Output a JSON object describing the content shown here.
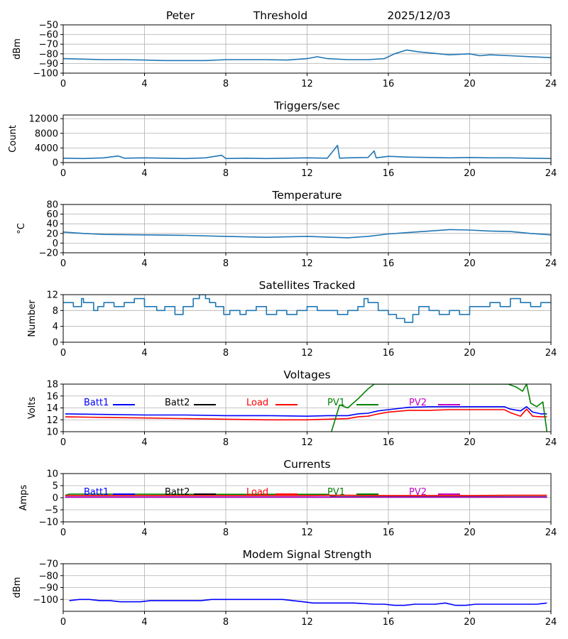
{
  "header": {
    "station": "Peter",
    "mode": "Threshold",
    "date": "2025/12/03"
  },
  "chart_data": [
    {
      "id": "threshold",
      "type": "line",
      "title": "",
      "xlabel": "",
      "ylabel": "dBm",
      "xlim": [
        0,
        24
      ],
      "ylim": [
        -100,
        -50
      ],
      "xticks": [
        0,
        4,
        8,
        12,
        16,
        20,
        24
      ],
      "yticks": [
        -100,
        -90,
        -80,
        -70,
        -60,
        -50
      ],
      "ytick_labels": [
        "−100",
        "−90",
        "−80",
        "−70",
        "−60",
        "−50"
      ],
      "grid": true,
      "series": [
        {
          "color": "#1f77b4",
          "x": [
            0,
            1,
            2,
            3,
            4,
            5,
            6,
            7,
            8,
            9,
            10,
            11,
            12,
            12.5,
            13,
            14,
            15,
            15.8,
            16.3,
            16.9,
            17.5,
            18,
            19,
            20,
            20.5,
            21,
            22,
            23,
            24
          ],
          "y": [
            -85,
            -85.5,
            -86,
            -86,
            -86.5,
            -87,
            -87,
            -87,
            -86,
            -86,
            -86,
            -86.5,
            -85,
            -83,
            -85,
            -86,
            -86,
            -85,
            -80,
            -76,
            -78,
            -79,
            -81,
            -80,
            -82,
            -81,
            -82,
            -83,
            -84
          ]
        }
      ]
    },
    {
      "id": "triggers",
      "type": "line",
      "title": "Triggers/sec",
      "xlabel": "",
      "ylabel": "Count",
      "xlim": [
        0,
        24
      ],
      "ylim": [
        0,
        13000
      ],
      "xticks": [
        0,
        4,
        8,
        12,
        16,
        20,
        24
      ],
      "yticks": [
        0,
        4000,
        8000,
        12000
      ],
      "ytick_labels": [
        "0",
        "4000",
        "8000",
        "12000"
      ],
      "grid": true,
      "series": [
        {
          "color": "#1f77b4",
          "x": [
            0,
            1,
            2,
            2.7,
            3,
            4,
            5,
            6,
            7,
            7.8,
            8,
            9,
            10,
            11,
            12,
            13,
            13.5,
            13.6,
            14,
            15,
            15.3,
            15.4,
            16,
            17,
            18,
            19,
            20,
            21,
            22,
            23,
            24
          ],
          "y": [
            1200,
            1100,
            1300,
            1800,
            1200,
            1300,
            1200,
            1100,
            1300,
            2000,
            1100,
            1200,
            1100,
            1200,
            1300,
            1200,
            4700,
            1200,
            1300,
            1400,
            3200,
            1300,
            1700,
            1500,
            1400,
            1300,
            1400,
            1300,
            1300,
            1200,
            1100
          ]
        }
      ]
    },
    {
      "id": "temperature",
      "type": "line",
      "title": "Temperature",
      "xlabel": "",
      "ylabel": "°C",
      "xlim": [
        0,
        24
      ],
      "ylim": [
        -20,
        80
      ],
      "xticks": [
        0,
        4,
        8,
        12,
        16,
        20,
        24
      ],
      "yticks": [
        -20,
        0,
        20,
        40,
        60,
        80
      ],
      "ytick_labels": [
        "−20",
        "0",
        "20",
        "40",
        "60",
        "80"
      ],
      "grid": true,
      "series": [
        {
          "color": "#1f77b4",
          "x": [
            0,
            1,
            2,
            4,
            6,
            8,
            10,
            12,
            14,
            15,
            16,
            17,
            18,
            19,
            20,
            21,
            22,
            23,
            24
          ],
          "y": [
            23,
            20,
            18,
            17,
            16,
            14,
            12,
            14,
            11,
            14,
            19,
            22,
            25,
            28,
            27,
            25,
            24,
            20,
            17
          ]
        }
      ]
    },
    {
      "id": "satellites",
      "type": "line",
      "title": "Satellites Tracked",
      "xlabel": "",
      "ylabel": "Number",
      "xlim": [
        0,
        24
      ],
      "ylim": [
        0,
        12
      ],
      "xticks": [
        0,
        4,
        8,
        12,
        16,
        20,
        24
      ],
      "yticks": [
        0,
        4,
        8,
        12
      ],
      "ytick_labels": [
        "0",
        "4",
        "8",
        "12"
      ],
      "grid": true,
      "series": [
        {
          "color": "#1f77b4",
          "step": true,
          "x": [
            0,
            0.5,
            0.9,
            1.0,
            1.5,
            1.7,
            2.0,
            2.5,
            3.0,
            3.5,
            4.0,
            4.6,
            5.0,
            5.5,
            5.9,
            6.4,
            6.7,
            7.0,
            7.2,
            7.5,
            7.9,
            8.2,
            8.7,
            9.0,
            9.5,
            10.0,
            10.5,
            11.0,
            11.5,
            12.0,
            12.5,
            13.0,
            13.5,
            14.0,
            14.5,
            14.8,
            15.0,
            15.5,
            16.0,
            16.4,
            16.8,
            17.2,
            17.5,
            18.0,
            18.5,
            19.0,
            19.5,
            20.0,
            20.5,
            21.0,
            21.5,
            22.0,
            22.5,
            23.0,
            23.5,
            24.0
          ],
          "y": [
            10,
            9,
            11,
            10,
            8,
            9,
            10,
            9,
            10,
            11,
            9,
            8,
            9,
            7,
            9,
            11,
            12,
            11,
            10,
            9,
            7,
            8,
            7,
            8,
            9,
            7,
            8,
            7,
            8,
            9,
            8,
            8,
            7,
            8,
            9,
            11,
            10,
            8,
            7,
            6,
            5,
            7,
            9,
            8,
            7,
            8,
            7,
            9,
            9,
            10,
            9,
            11,
            10,
            9,
            10,
            10
          ]
        }
      ]
    },
    {
      "id": "voltages",
      "type": "line",
      "title": "Voltages",
      "xlabel": "",
      "ylabel": "Volts",
      "xlim": [
        0,
        24
      ],
      "ylim": [
        10,
        18
      ],
      "xticks": [
        0,
        4,
        8,
        12,
        16,
        20,
        24
      ],
      "yticks": [
        10,
        12,
        14,
        16,
        18
      ],
      "ytick_labels": [
        "10",
        "12",
        "14",
        "16",
        "18"
      ],
      "grid": true,
      "legend_entries": [
        {
          "name": "Batt1",
          "color": "#0000ff"
        },
        {
          "name": "Batt2",
          "color": "#000000"
        },
        {
          "name": "Load",
          "color": "#ff0000"
        },
        {
          "name": "PV1",
          "color": "#008000"
        },
        {
          "name": "PV2",
          "color": "#bf00bf"
        }
      ],
      "series": [
        {
          "name": "Batt1",
          "color": "#0000ff",
          "x": [
            0.1,
            2,
            4,
            6,
            8,
            10,
            12,
            13,
            14,
            14.5,
            15,
            15.5,
            16,
            17,
            18,
            19,
            20,
            21,
            21.7,
            22,
            22.5,
            22.8,
            23.1,
            23.5,
            23.8
          ],
          "y": [
            13.0,
            12.9,
            12.8,
            12.8,
            12.7,
            12.7,
            12.6,
            12.7,
            12.7,
            13.0,
            13.1,
            13.5,
            13.7,
            14.1,
            14.2,
            14.2,
            14.2,
            14.2,
            14.2,
            13.8,
            13.5,
            14.2,
            13.3,
            13.0,
            13.0
          ]
        },
        {
          "name": "Load",
          "color": "#ff0000",
          "x": [
            0.1,
            2,
            4,
            6,
            8,
            10,
            12,
            13,
            14,
            14.5,
            15,
            15.5,
            16,
            17,
            18,
            19,
            20,
            21,
            21.7,
            22,
            22.5,
            22.8,
            23.1,
            23.5,
            23.8
          ],
          "y": [
            12.5,
            12.4,
            12.3,
            12.2,
            12.1,
            12.0,
            12.0,
            12.1,
            12.2,
            12.5,
            12.6,
            13.0,
            13.3,
            13.6,
            13.6,
            13.7,
            13.7,
            13.7,
            13.7,
            13.2,
            12.6,
            13.8,
            12.6,
            12.5,
            12.5
          ]
        },
        {
          "name": "PV1",
          "color": "#008000",
          "x": [
            13.2,
            13.6,
            14,
            14.5,
            15,
            15.3,
            21.9,
            22.3,
            22.6,
            22.8,
            23.0,
            23.3,
            23.6,
            23.8
          ],
          "y": [
            10,
            14.5,
            14.0,
            15.5,
            17.2,
            18,
            18,
            17.5,
            16.8,
            18,
            14.8,
            14.2,
            15.0,
            10
          ]
        }
      ]
    },
    {
      "id": "currents",
      "type": "line",
      "title": "Currents",
      "xlabel": "",
      "ylabel": "Amps",
      "xlim": [
        0,
        24
      ],
      "ylim": [
        -10,
        10
      ],
      "xticks": [
        0,
        4,
        8,
        12,
        16,
        20,
        24
      ],
      "yticks": [
        -10,
        -5,
        0,
        5,
        10
      ],
      "ytick_labels": [
        "−10",
        "−5",
        "0",
        "5",
        "10"
      ],
      "grid": true,
      "legend_entries": [
        {
          "name": "Batt1",
          "color": "#0000ff"
        },
        {
          "name": "Batt2",
          "color": "#000000"
        },
        {
          "name": "Load",
          "color": "#ff0000"
        },
        {
          "name": "PV1",
          "color": "#008000"
        },
        {
          "name": "PV2",
          "color": "#bf00bf"
        }
      ],
      "series": [
        {
          "name": "PV1",
          "color": "#008000",
          "x": [
            0.1,
            0.3,
            3,
            6,
            9,
            12,
            13.0,
            13.2,
            13.5,
            23.8
          ],
          "y": [
            1.0,
            1.5,
            1.5,
            1.4,
            1.4,
            1.4,
            1.4,
            0.6,
            0.4,
            0.4
          ]
        },
        {
          "name": "Load",
          "color": "#ff0000",
          "x": [
            0.1,
            3,
            6,
            9,
            12,
            13.2,
            14,
            16,
            18,
            20,
            22,
            23.8
          ],
          "y": [
            0.9,
            0.9,
            0.9,
            0.9,
            0.9,
            1.0,
            1.0,
            0.9,
            0.9,
            0.9,
            1.0,
            1.0
          ]
        },
        {
          "name": "Batt1",
          "color": "#0000ff",
          "x": [
            0.1,
            6,
            12,
            18,
            23.8
          ],
          "y": [
            0.3,
            0.3,
            0.3,
            0.3,
            0.3
          ]
        },
        {
          "name": "PV2",
          "color": "#bf00bf",
          "x": [
            0.1,
            6,
            12,
            18,
            23.8
          ],
          "y": [
            0.2,
            0.2,
            0.2,
            0.2,
            0.2
          ]
        }
      ]
    },
    {
      "id": "modem",
      "type": "line",
      "title": "Modem Signal Strength",
      "xlabel": "",
      "ylabel": "dBm",
      "xlim": [
        0,
        24
      ],
      "ylim": [
        -110,
        -70
      ],
      "xticks": [
        0,
        4,
        8,
        12,
        16,
        20,
        24
      ],
      "yticks": [
        -100,
        -90,
        -80,
        -70
      ],
      "ytick_labels": [
        "−100",
        "−90",
        "−80",
        "−70"
      ],
      "grid": true,
      "series": [
        {
          "color": "#0000ff",
          "x": [
            0.3,
            0.8,
            1.3,
            1.8,
            2.3,
            2.8,
            3.3,
            3.8,
            4.3,
            4.8,
            5.3,
            6.3,
            6.8,
            7.3,
            8.3,
            9.3,
            10.3,
            10.8,
            11.3,
            11.8,
            12.3,
            12.8,
            13.3,
            14.3,
            15.3,
            15.8,
            16.3,
            16.8,
            17.3,
            17.8,
            18.3,
            18.8,
            19.3,
            19.8,
            20.3,
            21.3,
            22.3,
            23.3,
            23.8
          ],
          "y": [
            -101,
            -100,
            -100,
            -101,
            -101,
            -102,
            -102,
            -102,
            -101,
            -101,
            -101,
            -101,
            -101,
            -100,
            -100,
            -100,
            -100,
            -100,
            -101,
            -102,
            -103,
            -103,
            -103,
            -103,
            -104,
            -104,
            -105,
            -105,
            -104,
            -104,
            -104,
            -103,
            -105,
            -105,
            -104,
            -104,
            -104,
            -104,
            -103
          ]
        }
      ]
    }
  ]
}
